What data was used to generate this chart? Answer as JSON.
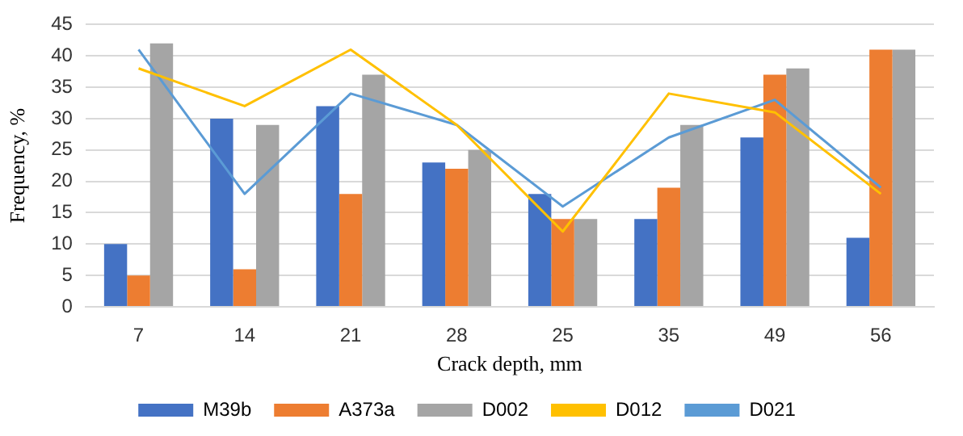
{
  "chart_data": {
    "type": "bar",
    "xlabel": "Crack depth, mm",
    "ylabel": "Frequency, %",
    "categories": [
      "7",
      "14",
      "21",
      "28",
      "25",
      "35",
      "49",
      "56"
    ],
    "series": [
      {
        "name": "M39b",
        "color": "#4472c4",
        "values": [
          10,
          30,
          32,
          23,
          18,
          14,
          27,
          11
        ]
      },
      {
        "name": "A373a",
        "color": "#ed7d31",
        "values": [
          5,
          6,
          18,
          22,
          14,
          19,
          37,
          41
        ]
      },
      {
        "name": "D002",
        "color": "#a5a5a5",
        "values": [
          42,
          29,
          37,
          25,
          14,
          29,
          38,
          41
        ]
      },
      {
        "name": "D012",
        "type": "line",
        "color": "#ffc000",
        "values": [
          38,
          32,
          41,
          29,
          12,
          34,
          31,
          18
        ]
      },
      {
        "name": "D021",
        "type": "line",
        "color": "#5b9bd5",
        "values": [
          41,
          18,
          34,
          29,
          16,
          27,
          33,
          19
        ]
      }
    ],
    "ylim": [
      0,
      45
    ],
    "yticks": [
      0,
      5,
      10,
      15,
      20,
      25,
      30,
      35,
      40,
      45
    ],
    "grid": "y",
    "legend": "bottom",
    "marker": "none"
  }
}
